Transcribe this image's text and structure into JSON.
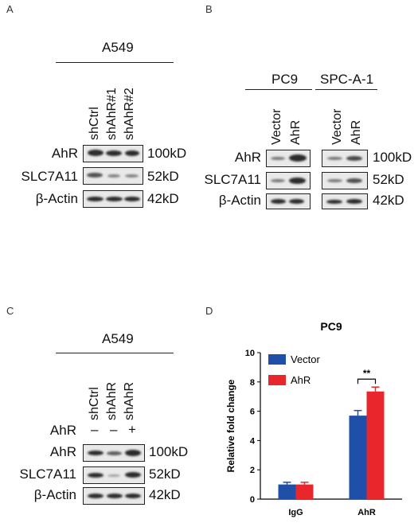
{
  "panels": {
    "A": {
      "letter": "A",
      "cell_line": "A549",
      "lanes": [
        "shCtrl",
        "shAhR#1",
        "shAhR#2"
      ],
      "rows": [
        {
          "name": "AhR",
          "kd": "100kD"
        },
        {
          "name": "SLC7A11",
          "kd": "52kD"
        },
        {
          "name": "β-Actin",
          "kd": "42kD"
        }
      ]
    },
    "B": {
      "letter": "B",
      "groups": [
        "PC9",
        "SPC-A-1"
      ],
      "lanes": [
        "Vector",
        "AhR",
        "Vector",
        "AhR"
      ],
      "rows": [
        {
          "name": "AhR",
          "kd": "100kD"
        },
        {
          "name": "SLC7A11",
          "kd": "52kD"
        },
        {
          "name": "β-Actin",
          "kd": "42kD"
        }
      ]
    },
    "C": {
      "letter": "C",
      "cell_line": "A549",
      "lanes": [
        "shCtrl",
        "shAhR",
        "shAhR"
      ],
      "treatment_label": "AhR",
      "treatment_signs": [
        "–",
        "–",
        "+"
      ],
      "rows": [
        {
          "name": "AhR",
          "kd": "100kD"
        },
        {
          "name": "SLC7A11",
          "kd": "52kD"
        },
        {
          "name": "β-Actin",
          "kd": "42kD"
        }
      ]
    },
    "D": {
      "letter": "D"
    }
  },
  "chart_data": {
    "type": "bar",
    "title": "PC9",
    "ylabel": "Relative fold change",
    "xlabel": "",
    "categories": [
      "IgG",
      "AhR"
    ],
    "series": [
      {
        "name": "Vector",
        "color": "#1f4fa8",
        "values": [
          1.0,
          5.7
        ],
        "errors": [
          0.15,
          0.35
        ]
      },
      {
        "name": "AhR",
        "color": "#e8262c",
        "values": [
          1.0,
          7.35
        ],
        "errors": [
          0.15,
          0.3
        ]
      }
    ],
    "ylim": [
      0,
      10
    ],
    "yticks": [
      "0",
      "2",
      "4",
      "6",
      "8",
      "10"
    ],
    "legend_position": "top-left",
    "significance": {
      "label": "**",
      "category": "AhR"
    }
  }
}
